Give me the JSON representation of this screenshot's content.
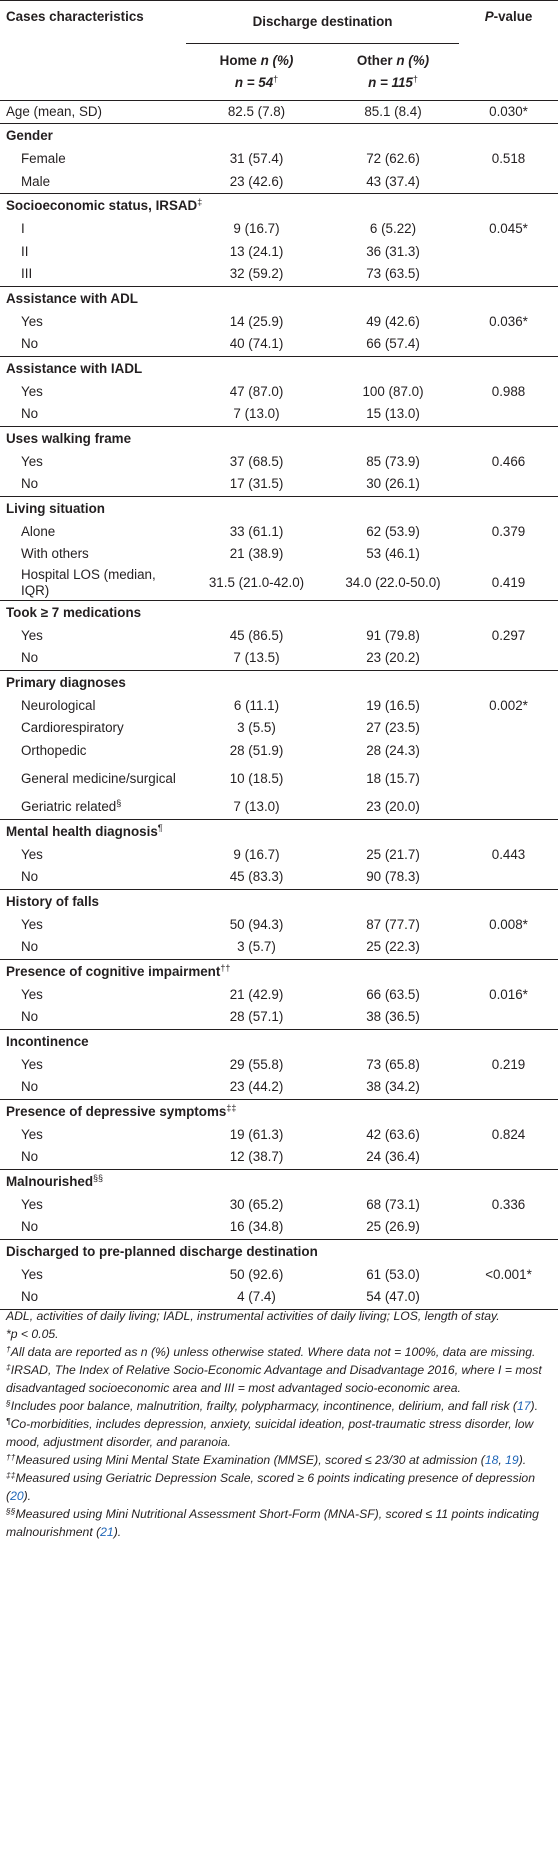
{
  "header": {
    "col_characteristics": "Cases characteristics",
    "col_discharge": "Discharge destination",
    "col_pvalue_p": "P",
    "col_pvalue_rest": "-value",
    "home_label": "Home ",
    "home_n_label": "n (%)",
    "home_count": "n = 54",
    "other_label": "Other ",
    "other_n_label": "n (%)",
    "other_count": "n = 115",
    "dagger": "†"
  },
  "rows": [
    {
      "kind": "single",
      "label": "Age (mean, SD)",
      "home": "82.5 (7.8)",
      "other": "85.1 (8.4)",
      "p": "0.030*"
    },
    {
      "kind": "section",
      "label": "Gender",
      "sup": ""
    },
    {
      "kind": "data",
      "label": "Female",
      "home": "31 (57.4)",
      "other": "72 (62.6)",
      "p": "0.518"
    },
    {
      "kind": "data",
      "label": "Male",
      "home": "23 (42.6)",
      "other": "43 (37.4)",
      "p": ""
    },
    {
      "kind": "section",
      "label": "Socioeconomic status, IRSAD",
      "sup": "‡"
    },
    {
      "kind": "data",
      "label": "I",
      "home": "9 (16.7)",
      "other": "6 (5.22)",
      "p": "0.045*"
    },
    {
      "kind": "data",
      "label": "II",
      "home": "13 (24.1)",
      "other": "36 (31.3)",
      "p": ""
    },
    {
      "kind": "data",
      "label": "III",
      "home": "32 (59.2)",
      "other": "73 (63.5)",
      "p": ""
    },
    {
      "kind": "section",
      "label": "Assistance with ADL",
      "sup": ""
    },
    {
      "kind": "data",
      "label": "Yes",
      "home": "14 (25.9)",
      "other": "49 (42.6)",
      "p": "0.036*"
    },
    {
      "kind": "data",
      "label": "No",
      "home": "40 (74.1)",
      "other": "66 (57.4)",
      "p": ""
    },
    {
      "kind": "section",
      "label": "Assistance with IADL",
      "sup": ""
    },
    {
      "kind": "data",
      "label": "Yes",
      "home": "47 (87.0)",
      "other": "100 (87.0)",
      "p": "0.988"
    },
    {
      "kind": "data",
      "label": "No",
      "home": "7 (13.0)",
      "other": "15 (13.0)",
      "p": ""
    },
    {
      "kind": "section",
      "label": "Uses walking frame",
      "sup": ""
    },
    {
      "kind": "data",
      "label": "Yes",
      "home": "37 (68.5)",
      "other": "85 (73.9)",
      "p": "0.466"
    },
    {
      "kind": "data",
      "label": "No",
      "home": "17 (31.5)",
      "other": "30 (26.1)",
      "p": ""
    },
    {
      "kind": "section",
      "label": "Living situation",
      "sup": ""
    },
    {
      "kind": "data",
      "label": "Alone",
      "home": "33 (61.1)",
      "other": "62 (53.9)",
      "p": "0.379"
    },
    {
      "kind": "data",
      "label": "With others",
      "home": "21 (38.9)",
      "other": "53 (46.1)",
      "p": ""
    },
    {
      "kind": "tall",
      "label": "Hospital LOS (median, IQR)",
      "home": "31.5 (21.0-42.0)",
      "other": "34.0 (22.0-50.0)",
      "p": "0.419"
    },
    {
      "kind": "section",
      "label": "Took ≥ 7 medications",
      "sup": ""
    },
    {
      "kind": "data",
      "label": "Yes",
      "home": "45 (86.5)",
      "other": "91 (79.8)",
      "p": "0.297"
    },
    {
      "kind": "data",
      "label": "No",
      "home": "7 (13.5)",
      "other": "23 (20.2)",
      "p": ""
    },
    {
      "kind": "section",
      "label": "Primary diagnoses",
      "sup": ""
    },
    {
      "kind": "data",
      "label": "Neurological",
      "home": "6 (11.1)",
      "other": "19 (16.5)",
      "p": "0.002*"
    },
    {
      "kind": "data",
      "label": "Cardiorespiratory",
      "home": "3 (5.5)",
      "other": "27 (23.5)",
      "p": ""
    },
    {
      "kind": "data",
      "label": "Orthopedic",
      "home": "28 (51.9)",
      "other": "28 (24.3)",
      "p": ""
    },
    {
      "kind": "tall",
      "label": "General medicine/surgical",
      "home": "10 (18.5)",
      "other": "18 (15.7)",
      "p": ""
    },
    {
      "kind": "data",
      "label": "Geriatric related",
      "sup": "§",
      "home": "7 (13.0)",
      "other": "23 (20.0)",
      "p": ""
    },
    {
      "kind": "section",
      "label": "Mental health diagnosis",
      "sup": "¶"
    },
    {
      "kind": "data",
      "label": "Yes",
      "home": "9 (16.7)",
      "other": "25 (21.7)",
      "p": "0.443"
    },
    {
      "kind": "data",
      "label": "No",
      "home": "45 (83.3)",
      "other": "90 (78.3)",
      "p": ""
    },
    {
      "kind": "section",
      "label": "History of falls",
      "sup": ""
    },
    {
      "kind": "data",
      "label": "Yes",
      "home": "50 (94.3)",
      "other": "87 (77.7)",
      "p": "0.008*"
    },
    {
      "kind": "data",
      "label": "No",
      "home": "3 (5.7)",
      "other": "25 (22.3)",
      "p": ""
    },
    {
      "kind": "section",
      "label": "Presence of cognitive impairment",
      "sup": "††"
    },
    {
      "kind": "data",
      "label": "Yes",
      "home": "21 (42.9)",
      "other": "66 (63.5)",
      "p": "0.016*"
    },
    {
      "kind": "data",
      "label": "No",
      "home": "28 (57.1)",
      "other": "38 (36.5)",
      "p": ""
    },
    {
      "kind": "section",
      "label": "Incontinence",
      "sup": ""
    },
    {
      "kind": "data",
      "label": "Yes",
      "home": "29 (55.8)",
      "other": "73 (65.8)",
      "p": "0.219"
    },
    {
      "kind": "data",
      "label": "No",
      "home": "23 (44.2)",
      "other": "38 (34.2)",
      "p": ""
    },
    {
      "kind": "section",
      "label": "Presence of depressive symptoms",
      "sup": "‡‡"
    },
    {
      "kind": "data",
      "label": "Yes",
      "home": "19 (61.3)",
      "other": "42 (63.6)",
      "p": "0.824"
    },
    {
      "kind": "data",
      "label": "No",
      "home": "12 (38.7)",
      "other": "24 (36.4)",
      "p": ""
    },
    {
      "kind": "section",
      "label": "Malnourished",
      "sup": "§§"
    },
    {
      "kind": "data",
      "label": "Yes",
      "home": "30 (65.2)",
      "other": "68 (73.1)",
      "p": "0.336"
    },
    {
      "kind": "data",
      "label": "No",
      "home": "16 (34.8)",
      "other": "25 (26.9)",
      "p": ""
    },
    {
      "kind": "section",
      "label": "Discharged to pre-planned discharge destination",
      "sup": ""
    },
    {
      "kind": "data",
      "label": "Yes",
      "home": "50 (92.6)",
      "other": "61 (53.0)",
      "p": "<0.001*"
    },
    {
      "kind": "data",
      "label": "No",
      "home": "4 (7.4)",
      "other": "54 (47.0)",
      "p": ""
    }
  ],
  "notes": [
    {
      "mark": "",
      "parts": [
        {
          "t": "ADL, activities of daily living; IADL, instrumental activities of daily living; LOS, length of stay."
        }
      ]
    },
    {
      "mark": "",
      "parts": [
        {
          "t": "*p < 0.05."
        }
      ]
    },
    {
      "mark": "†",
      "parts": [
        {
          "t": "All data are reported as n (%) unless otherwise stated. Where data not = 100%, data are missing."
        }
      ]
    },
    {
      "mark": "‡",
      "parts": [
        {
          "t": "IRSAD, The Index of Relative Socio-Economic Advantage and Disadvantage 2016, where I = most disadvantaged socioeconomic area and III = most advantaged socio-economic area."
        }
      ]
    },
    {
      "mark": "§",
      "parts": [
        {
          "t": "Includes poor balance, malnutrition, frailty, polypharmacy, incontinence, delirium, and fall risk ("
        },
        {
          "t": "17",
          "ref": true
        },
        {
          "t": ")."
        }
      ]
    },
    {
      "mark": "¶",
      "parts": [
        {
          "t": "Co-morbidities, includes depression, anxiety, suicidal ideation, post-traumatic stress disorder, low mood, adjustment disorder, and paranoia."
        }
      ]
    },
    {
      "mark": "††",
      "parts": [
        {
          "t": "Measured using Mini Mental State Examination (MMSE), scored ≤ 23/30 at admission ("
        },
        {
          "t": "18",
          "ref": true
        },
        {
          "t": ", "
        },
        {
          "t": "19",
          "ref": true
        },
        {
          "t": ")."
        }
      ]
    },
    {
      "mark": "‡‡",
      "parts": [
        {
          "t": "Measured using Geriatric Depression Scale, scored ≥ 6 points indicating presence of depression ("
        },
        {
          "t": "20",
          "ref": true
        },
        {
          "t": ")."
        }
      ]
    },
    {
      "mark": "§§",
      "parts": [
        {
          "t": "Measured using Mini Nutritional Assessment Short-Form (MNA-SF), scored ≤ 11 points indicating malnourishment ("
        },
        {
          "t": "21",
          "ref": true
        },
        {
          "t": ")."
        }
      ]
    }
  ]
}
